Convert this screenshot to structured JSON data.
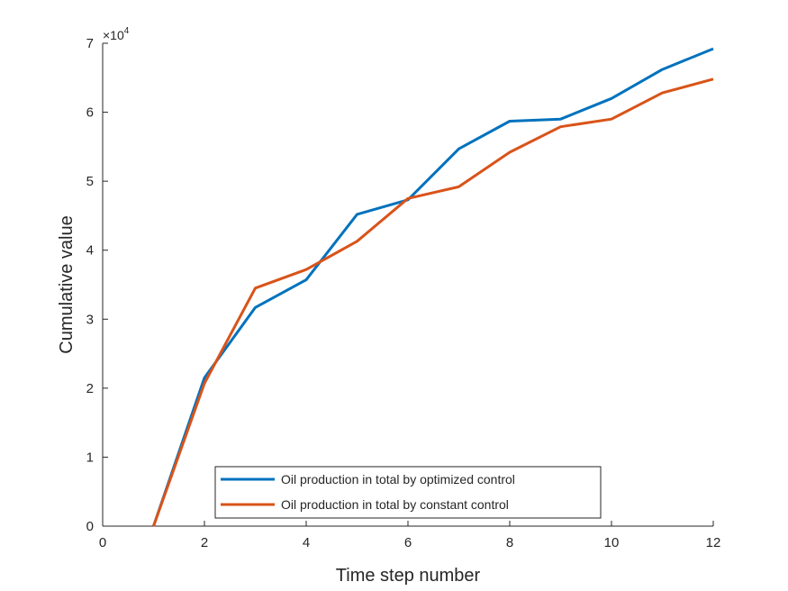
{
  "chart_data": {
    "type": "line",
    "title": "",
    "xlabel": "Time step number",
    "ylabel": "Cumulative value",
    "exponent_base": "×10",
    "exponent_power": "4",
    "xlim": [
      0,
      12
    ],
    "ylim": [
      0,
      7
    ],
    "xticks": [
      0,
      2,
      4,
      6,
      8,
      10,
      12
    ],
    "yticks": [
      0,
      1,
      2,
      3,
      4,
      5,
      6,
      7
    ],
    "grid": false,
    "legend_position": "bottom-center",
    "x": [
      1,
      2,
      3,
      4,
      5,
      6,
      7,
      8,
      9,
      10,
      11,
      12
    ],
    "series": [
      {
        "name": "Oil production in total by optimized control",
        "color": "#0072BD",
        "values": [
          0,
          2.15,
          3.17,
          3.57,
          4.52,
          4.73,
          5.47,
          5.87,
          5.9,
          6.2,
          6.62,
          6.92
        ]
      },
      {
        "name": "Oil production in total by constant control",
        "color": "#D95319",
        "values": [
          0,
          2.07,
          3.45,
          3.72,
          4.13,
          4.75,
          4.92,
          5.42,
          5.79,
          5.9,
          6.28,
          6.48
        ]
      }
    ]
  }
}
